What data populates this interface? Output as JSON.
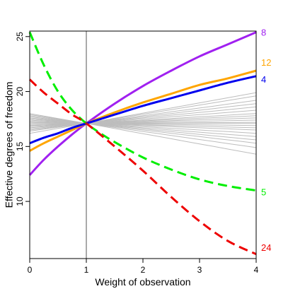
{
  "chart_data": {
    "type": "line",
    "xlabel": "Weight of observation",
    "ylabel": "Effective degrees of freedom",
    "xlim": [
      0,
      4
    ],
    "ylim": [
      4.8,
      25.5
    ],
    "xticks": [
      0,
      1,
      2,
      3,
      4
    ],
    "yticks": [
      10,
      15,
      20,
      25
    ],
    "reference_line_x": 1,
    "background_color": "#bdbdbd",
    "background_series_end_values": [
      14.3,
      14.9,
      15.3,
      15.6,
      15.9,
      16.2,
      16.5,
      16.7,
      16.9,
      17.1,
      17.2,
      17.4,
      17.6,
      17.8,
      18.0,
      18.3,
      18.6,
      18.9,
      19.2,
      19.6,
      19.9
    ],
    "background_series_start_values": [
      16.2,
      16.4,
      16.6,
      16.7,
      16.8,
      16.9,
      17.0,
      17.1,
      17.2,
      17.3,
      17.4,
      17.5,
      17.6,
      17.7,
      17.8,
      17.9,
      18.0,
      17.5,
      16.5,
      17.2,
      16.9
    ],
    "series": [
      {
        "name": "8",
        "color": "#a020f0",
        "dashed": false,
        "x": [
          0,
          0.25,
          0.5,
          0.75,
          1,
          1.5,
          2,
          2.5,
          3,
          3.5,
          4
        ],
        "values": [
          12.4,
          13.8,
          15.0,
          16.1,
          17.1,
          18.9,
          20.5,
          21.9,
          23.2,
          24.3,
          25.4
        ]
      },
      {
        "name": "12",
        "color": "#ffa500",
        "dashed": false,
        "x": [
          0,
          0.25,
          0.5,
          0.75,
          1,
          1.5,
          2,
          2.5,
          3,
          3.5,
          4
        ],
        "values": [
          14.6,
          15.3,
          15.9,
          16.5,
          17.1,
          18.1,
          19.0,
          19.8,
          20.6,
          21.2,
          21.9
        ]
      },
      {
        "name": "4",
        "color": "#0000ee",
        "dashed": false,
        "x": [
          0,
          0.25,
          0.5,
          0.75,
          1,
          1.5,
          2,
          2.5,
          3,
          3.5,
          4
        ],
        "values": [
          15.3,
          15.8,
          16.2,
          16.7,
          17.1,
          17.9,
          18.7,
          19.4,
          20.1,
          20.8,
          21.4
        ]
      },
      {
        "name": "5",
        "color": "#00ee00",
        "dashed": true,
        "x": [
          0,
          0.25,
          0.5,
          0.75,
          1,
          1.25,
          1.5,
          2,
          2.5,
          3,
          3.5,
          4
        ],
        "values": [
          25.4,
          22.4,
          20.0,
          18.3,
          17.1,
          16.2,
          15.4,
          14.0,
          12.9,
          12.0,
          11.4,
          11.0
        ]
      },
      {
        "name": "24",
        "color": "#ee0000",
        "dashed": true,
        "x": [
          0,
          0.25,
          0.5,
          0.75,
          1,
          1.5,
          2,
          2.5,
          3,
          3.5,
          4
        ],
        "values": [
          21.1,
          19.9,
          18.9,
          17.9,
          17.1,
          15.0,
          12.8,
          10.4,
          8.2,
          6.4,
          5.2
        ]
      }
    ]
  }
}
